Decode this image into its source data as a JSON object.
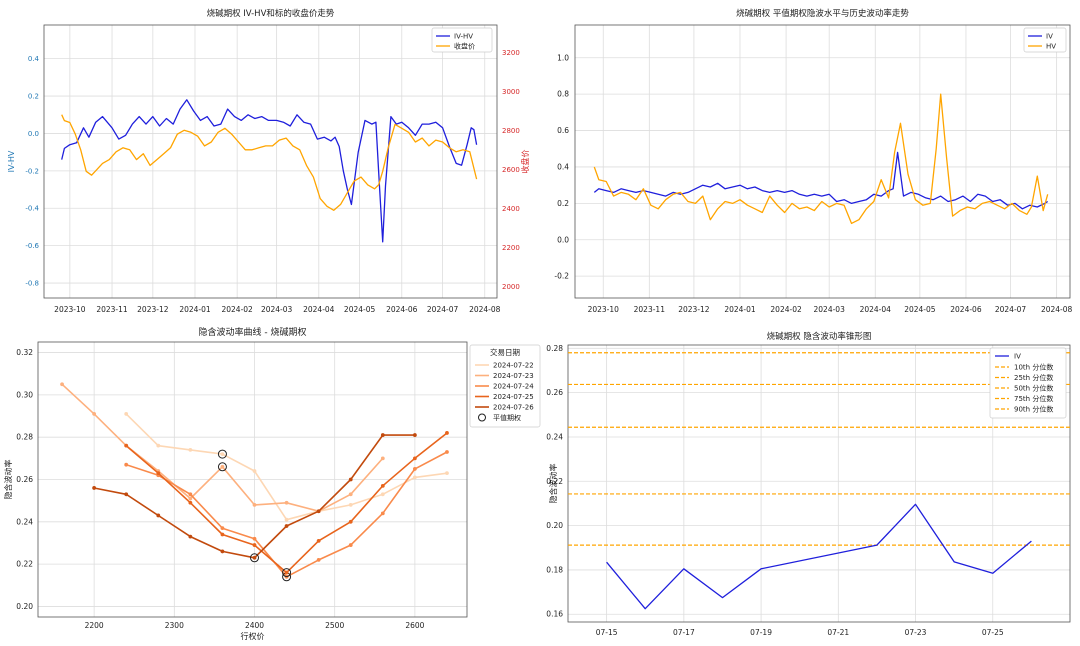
{
  "colors": {
    "blue": "#1f1fdc",
    "orange": "#ffa500",
    "red": "#d62728",
    "axis_blue": "#1f77b4",
    "grid": "#dddddd",
    "spine": "#555555",
    "oranges": [
      "#fdd7b4",
      "#fdb07e",
      "#f98a4b",
      "#e8641c",
      "#c24a0d"
    ]
  },
  "chart_data": [
    {
      "id": "panel1",
      "type": "line",
      "title": "烧碱期权 IV-HV和标的收盘价走势",
      "xlabel": "",
      "ylabel": "IV-HV",
      "y2label": "收盘价",
      "x_ticks": [
        "2023-10",
        "2023-11",
        "2023-12",
        "2024-01",
        "2024-02",
        "2024-03",
        "2024-04",
        "2024-05",
        "2024-06",
        "2024-07",
        "2024-08"
      ],
      "ylim": [
        -0.88,
        0.58
      ],
      "y_ticks": [
        -0.8,
        -0.6,
        -0.4,
        -0.2,
        0.0,
        0.2,
        0.4
      ],
      "y_tick_labels": [
        "-0.8",
        "-0.6",
        "-0.4",
        "-0.2",
        "0.0",
        "0.2",
        "0.4"
      ],
      "y2lim": [
        1940,
        3340
      ],
      "y2_ticks": [
        2000,
        2200,
        2400,
        2600,
        2800,
        3000,
        3200
      ],
      "y2_tick_labels": [
        "2000",
        "2200",
        "2400",
        "2600",
        "2800",
        "3000",
        "3200"
      ],
      "legend_position": "top-right",
      "series": [
        {
          "name": "IV-HV",
          "axis": "left",
          "x": [
            "2023-09-25",
            "2023-09-27",
            "2023-10-01",
            "2023-10-06",
            "2023-10-11",
            "2023-10-15",
            "2023-10-20",
            "2023-10-25",
            "2023-11-01",
            "2023-11-06",
            "2023-11-11",
            "2023-11-16",
            "2023-11-21",
            "2023-11-26",
            "2023-12-01",
            "2023-12-06",
            "2023-12-11",
            "2023-12-16",
            "2023-12-21",
            "2023-12-26",
            "2023-12-31",
            "2024-01-05",
            "2024-01-10",
            "2024-01-15",
            "2024-01-20",
            "2024-01-25",
            "2024-01-30",
            "2024-02-04",
            "2024-02-09",
            "2024-02-14",
            "2024-02-19",
            "2024-02-24",
            "2024-03-01",
            "2024-03-06",
            "2024-03-11",
            "2024-03-16",
            "2024-03-21",
            "2024-03-26",
            "2024-03-31",
            "2024-04-05",
            "2024-04-10",
            "2024-04-13",
            "2024-04-16",
            "2024-04-19",
            "2024-04-22",
            "2024-04-25",
            "2024-04-30",
            "2024-05-05",
            "2024-05-10",
            "2024-05-13",
            "2024-05-15",
            "2024-05-18",
            "2024-05-20",
            "2024-05-24",
            "2024-05-28",
            "2024-06-01",
            "2024-06-06",
            "2024-06-11",
            "2024-06-16",
            "2024-06-21",
            "2024-06-26",
            "2024-07-01",
            "2024-07-06",
            "2024-07-11",
            "2024-07-15",
            "2024-07-19",
            "2024-07-22",
            "2024-07-24",
            "2024-07-26"
          ],
          "values": [
            -0.14,
            -0.08,
            -0.06,
            -0.05,
            0.03,
            -0.02,
            0.06,
            0.09,
            0.03,
            -0.03,
            -0.01,
            0.05,
            0.09,
            0.05,
            0.09,
            0.04,
            0.08,
            0.05,
            0.13,
            0.18,
            0.12,
            0.07,
            0.09,
            0.04,
            0.05,
            0.13,
            0.09,
            0.07,
            0.1,
            0.08,
            0.09,
            0.07,
            0.07,
            0.06,
            0.04,
            0.1,
            0.06,
            0.05,
            -0.03,
            -0.02,
            -0.04,
            -0.02,
            -0.07,
            -0.2,
            -0.3,
            -0.38,
            -0.1,
            0.07,
            0.05,
            0.06,
            -0.2,
            -0.58,
            -0.28,
            0.09,
            0.05,
            0.06,
            0.03,
            -0.01,
            0.05,
            0.05,
            0.06,
            0.03,
            -0.07,
            -0.16,
            -0.17,
            -0.06,
            0.03,
            0.02,
            -0.06
          ]
        },
        {
          "name": "收盘价",
          "axis": "right",
          "x": [
            "2023-09-25",
            "2023-09-27",
            "2023-10-01",
            "2023-10-05",
            "2023-10-09",
            "2023-10-13",
            "2023-10-17",
            "2023-10-21",
            "2023-10-25",
            "2023-10-30",
            "2023-11-04",
            "2023-11-09",
            "2023-11-14",
            "2023-11-19",
            "2023-11-24",
            "2023-11-29",
            "2023-12-04",
            "2023-12-09",
            "2023-12-14",
            "2023-12-19",
            "2023-12-24",
            "2023-12-29",
            "2024-01-03",
            "2024-01-08",
            "2024-01-13",
            "2024-01-18",
            "2024-01-23",
            "2024-01-28",
            "2024-02-02",
            "2024-02-07",
            "2024-02-12",
            "2024-02-17",
            "2024-02-22",
            "2024-02-27",
            "2024-03-03",
            "2024-03-08",
            "2024-03-13",
            "2024-03-18",
            "2024-03-23",
            "2024-03-28",
            "2024-04-02",
            "2024-04-07",
            "2024-04-12",
            "2024-04-17",
            "2024-04-22",
            "2024-04-27",
            "2024-05-02",
            "2024-05-07",
            "2024-05-12",
            "2024-05-15",
            "2024-05-18",
            "2024-05-22",
            "2024-05-27",
            "2024-06-01",
            "2024-06-06",
            "2024-06-11",
            "2024-06-16",
            "2024-06-21",
            "2024-06-26",
            "2024-07-01",
            "2024-07-06",
            "2024-07-11",
            "2024-07-16",
            "2024-07-21",
            "2024-07-26"
          ],
          "values": [
            2880,
            2850,
            2840,
            2780,
            2700,
            2590,
            2570,
            2600,
            2630,
            2650,
            2690,
            2710,
            2700,
            2650,
            2680,
            2620,
            2650,
            2680,
            2710,
            2780,
            2800,
            2790,
            2770,
            2720,
            2740,
            2790,
            2810,
            2780,
            2740,
            2700,
            2700,
            2710,
            2720,
            2720,
            2750,
            2760,
            2720,
            2700,
            2620,
            2560,
            2450,
            2410,
            2390,
            2420,
            2480,
            2540,
            2560,
            2520,
            2500,
            2520,
            2590,
            2710,
            2830,
            2810,
            2790,
            2740,
            2760,
            2720,
            2750,
            2740,
            2710,
            2690,
            2700,
            2690,
            2550
          ]
        }
      ]
    },
    {
      "id": "panel2",
      "type": "line",
      "title": "烧碱期权 平值期权隐波水平与历史波动率走势",
      "xlabel": "",
      "ylabel": "",
      "x_ticks": [
        "2023-10",
        "2023-11",
        "2023-12",
        "2024-01",
        "2024-02",
        "2024-03",
        "2024-04",
        "2024-05",
        "2024-06",
        "2024-07",
        "2024-08"
      ],
      "ylim": [
        -0.32,
        1.18
      ],
      "y_ticks": [
        -0.2,
        0.0,
        0.2,
        0.4,
        0.6,
        0.8,
        1.0
      ],
      "y_tick_labels": [
        "-0.2",
        "0.0",
        "0.2",
        "0.4",
        "0.6",
        "0.8",
        "1.0"
      ],
      "legend_position": "top-right",
      "series": [
        {
          "name": "IV",
          "x": [
            "2023-09-25",
            "2023-09-28",
            "2023-10-03",
            "2023-10-08",
            "2023-10-13",
            "2023-10-18",
            "2023-10-23",
            "2023-10-28",
            "2023-11-02",
            "2023-11-07",
            "2023-11-12",
            "2023-11-17",
            "2023-11-22",
            "2023-11-27",
            "2023-12-02",
            "2023-12-07",
            "2023-12-12",
            "2023-12-17",
            "2023-12-22",
            "2023-12-27",
            "2024-01-01",
            "2024-01-06",
            "2024-01-11",
            "2024-01-16",
            "2024-01-21",
            "2024-01-26",
            "2024-01-31",
            "2024-02-05",
            "2024-02-10",
            "2024-02-15",
            "2024-02-20",
            "2024-02-25",
            "2024-03-01",
            "2024-03-06",
            "2024-03-11",
            "2024-03-16",
            "2024-03-21",
            "2024-03-26",
            "2024-03-31",
            "2024-04-05",
            "2024-04-10",
            "2024-04-13",
            "2024-04-16",
            "2024-04-20",
            "2024-04-25",
            "2024-04-30",
            "2024-05-05",
            "2024-05-10",
            "2024-05-15",
            "2024-05-20",
            "2024-05-25",
            "2024-05-30",
            "2024-06-04",
            "2024-06-09",
            "2024-06-14",
            "2024-06-19",
            "2024-06-24",
            "2024-06-29",
            "2024-07-04",
            "2024-07-09",
            "2024-07-14",
            "2024-07-19",
            "2024-07-24",
            "2024-07-26"
          ],
          "values": [
            0.26,
            0.28,
            0.27,
            0.26,
            0.28,
            0.27,
            0.26,
            0.27,
            0.26,
            0.25,
            0.24,
            0.26,
            0.25,
            0.26,
            0.28,
            0.3,
            0.29,
            0.31,
            0.28,
            0.29,
            0.3,
            0.28,
            0.29,
            0.27,
            0.26,
            0.27,
            0.26,
            0.27,
            0.25,
            0.24,
            0.25,
            0.24,
            0.25,
            0.21,
            0.22,
            0.2,
            0.21,
            0.22,
            0.25,
            0.24,
            0.27,
            0.28,
            0.48,
            0.24,
            0.26,
            0.25,
            0.23,
            0.22,
            0.24,
            0.21,
            0.22,
            0.24,
            0.21,
            0.25,
            0.24,
            0.21,
            0.22,
            0.19,
            0.2,
            0.17,
            0.19,
            0.18,
            0.2,
            0.21
          ]
        },
        {
          "name": "HV",
          "x": [
            "2023-09-25",
            "2023-09-28",
            "2023-10-03",
            "2023-10-08",
            "2023-10-13",
            "2023-10-18",
            "2023-10-23",
            "2023-10-28",
            "2023-11-02",
            "2023-11-07",
            "2023-11-12",
            "2023-11-17",
            "2023-11-22",
            "2023-11-27",
            "2023-12-02",
            "2023-12-07",
            "2023-12-12",
            "2023-12-17",
            "2023-12-22",
            "2023-12-27",
            "2024-01-01",
            "2024-01-06",
            "2024-01-11",
            "2024-01-16",
            "2024-01-21",
            "2024-01-26",
            "2024-01-31",
            "2024-02-05",
            "2024-02-10",
            "2024-02-15",
            "2024-02-20",
            "2024-02-25",
            "2024-03-01",
            "2024-03-06",
            "2024-03-11",
            "2024-03-16",
            "2024-03-21",
            "2024-03-26",
            "2024-03-31",
            "2024-04-05",
            "2024-04-10",
            "2024-04-14",
            "2024-04-18",
            "2024-04-23",
            "2024-04-28",
            "2024-05-03",
            "2024-05-08",
            "2024-05-12",
            "2024-05-15",
            "2024-05-19",
            "2024-05-23",
            "2024-05-28",
            "2024-06-02",
            "2024-06-07",
            "2024-06-12",
            "2024-06-17",
            "2024-06-22",
            "2024-06-27",
            "2024-07-02",
            "2024-07-07",
            "2024-07-12",
            "2024-07-15",
            "2024-07-19",
            "2024-07-23",
            "2024-07-26"
          ],
          "values": [
            0.4,
            0.33,
            0.32,
            0.24,
            0.26,
            0.25,
            0.22,
            0.28,
            0.19,
            0.17,
            0.22,
            0.25,
            0.26,
            0.21,
            0.2,
            0.24,
            0.11,
            0.17,
            0.21,
            0.2,
            0.22,
            0.19,
            0.17,
            0.15,
            0.24,
            0.19,
            0.15,
            0.2,
            0.17,
            0.18,
            0.16,
            0.21,
            0.18,
            0.2,
            0.19,
            0.09,
            0.11,
            0.17,
            0.21,
            0.33,
            0.23,
            0.48,
            0.64,
            0.36,
            0.22,
            0.19,
            0.2,
            0.5,
            0.8,
            0.45,
            0.13,
            0.16,
            0.18,
            0.17,
            0.2,
            0.21,
            0.19,
            0.17,
            0.2,
            0.16,
            0.14,
            0.18,
            0.35,
            0.16,
            0.25
          ]
        }
      ]
    },
    {
      "id": "panel3",
      "type": "line",
      "title": "隐含波动率曲线 - 烧碱期权",
      "xlabel": "行权价",
      "ylabel": "隐含波动率",
      "xlim": [
        2130,
        2665
      ],
      "x_ticks": [
        2200,
        2300,
        2400,
        2500,
        2600
      ],
      "x_tick_labels": [
        "2200",
        "2300",
        "2400",
        "2500",
        "2600"
      ],
      "ylim": [
        0.195,
        0.325
      ],
      "y_ticks": [
        0.2,
        0.22,
        0.24,
        0.26,
        0.28,
        0.3,
        0.32
      ],
      "y_tick_labels": [
        "0.20",
        "0.22",
        "0.24",
        "0.26",
        "0.28",
        "0.30",
        "0.32"
      ],
      "legend_title": "交易日期",
      "legend_position": "top-right",
      "series": [
        {
          "name": "2024-07-22",
          "x": [
            2240,
            2280,
            2320,
            2360,
            2400,
            2440,
            2480,
            2520,
            2560,
            2600,
            2640
          ],
          "values": [
            0.291,
            0.276,
            0.274,
            0.272,
            0.264,
            0.241,
            0.245,
            0.248,
            0.253,
            0.261,
            0.263
          ],
          "atm_index": 3
        },
        {
          "name": "2024-07-23",
          "x": [
            2160,
            2200,
            2240,
            2280,
            2320,
            2360,
            2400,
            2440,
            2480,
            2520,
            2560
          ],
          "values": [
            0.305,
            0.291,
            0.276,
            0.264,
            0.251,
            0.266,
            0.248,
            0.249,
            0.245,
            0.253,
            0.27
          ],
          "atm_index": 5
        },
        {
          "name": "2024-07-24",
          "x": [
            2240,
            2280,
            2320,
            2360,
            2400,
            2440,
            2480,
            2520,
            2560,
            2600,
            2640
          ],
          "values": [
            0.267,
            0.262,
            0.253,
            0.237,
            0.232,
            0.214,
            0.222,
            0.229,
            0.244,
            0.265,
            0.273
          ],
          "atm_index": 5
        },
        {
          "name": "2024-07-25",
          "x": [
            2240,
            2280,
            2320,
            2360,
            2400,
            2440,
            2480,
            2520,
            2560,
            2600,
            2640
          ],
          "values": [
            0.276,
            0.263,
            0.249,
            0.234,
            0.229,
            0.216,
            0.231,
            0.24,
            0.257,
            0.27,
            0.282
          ],
          "atm_index": 5
        },
        {
          "name": "2024-07-26",
          "x": [
            2200,
            2240,
            2280,
            2320,
            2360,
            2400,
            2440,
            2480,
            2520,
            2560,
            2600
          ],
          "values": [
            0.256,
            0.253,
            0.243,
            0.233,
            0.226,
            0.223,
            0.238,
            0.245,
            0.26,
            0.281,
            0.281
          ],
          "atm_index": 5
        }
      ],
      "atm_label": "平值期权"
    },
    {
      "id": "panel4",
      "type": "line",
      "title": "烧碱期权 隐含波动率锥形图",
      "xlabel": "",
      "ylabel": "隐含波动率",
      "x_ticks": [
        "07-15",
        "07-17",
        "07-19",
        "07-21",
        "07-23",
        "07-25"
      ],
      "ylim": [
        0.1565,
        0.2815
      ],
      "y_ticks": [
        0.16,
        0.18,
        0.2,
        0.22,
        0.24,
        0.26,
        0.28
      ],
      "y_tick_labels": [
        "0.16",
        "0.18",
        "0.20",
        "0.22",
        "0.24",
        "0.26",
        "0.28"
      ],
      "legend_position": "top-right",
      "series": [
        {
          "name": "IV",
          "x": [
            "07-15",
            "07-16",
            "07-17",
            "07-18",
            "07-19",
            "07-22",
            "07-23",
            "07-24",
            "07-25",
            "07-26"
          ],
          "values": [
            0.1835,
            0.1625,
            0.1805,
            0.1675,
            0.1805,
            0.1912,
            0.2096,
            0.1836,
            0.1785,
            0.193
          ]
        }
      ],
      "quantiles": [
        {
          "name": "10th 分位数",
          "value": 0.1912
        },
        {
          "name": "25th 分位数",
          "value": 0.2143
        },
        {
          "name": "50th 分位数",
          "value": 0.2444
        },
        {
          "name": "75th 分位数",
          "value": 0.2637
        },
        {
          "name": "90th 分位数",
          "value": 0.278
        }
      ]
    }
  ]
}
